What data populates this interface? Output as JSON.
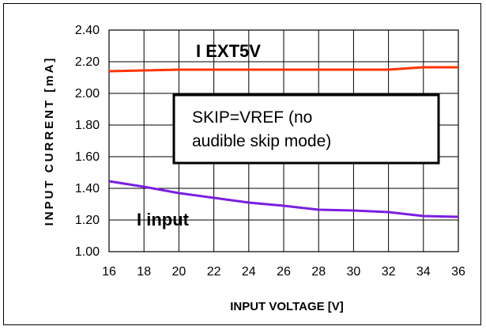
{
  "chart_data": {
    "type": "line",
    "xlabel": "INPUT VOLTAGE [V]",
    "ylabel": "INPUT CURRENT [mA]",
    "xlim": [
      16,
      36
    ],
    "ylim": [
      1.0,
      2.4
    ],
    "x_ticks": [
      16,
      18,
      20,
      22,
      24,
      26,
      28,
      30,
      32,
      34,
      36
    ],
    "y_ticks": [
      1.0,
      1.2,
      1.4,
      1.6,
      1.8,
      2.0,
      2.2,
      2.4
    ],
    "x_tick_labels": [
      "16",
      "18",
      "20",
      "22",
      "24",
      "26",
      "28",
      "30",
      "32",
      "34",
      "36"
    ],
    "y_tick_labels": [
      "1.00",
      "1.20",
      "1.40",
      "1.60",
      "1.80",
      "2.00",
      "2.20",
      "2.40"
    ],
    "grid": true,
    "series": [
      {
        "name": "I EXT5V",
        "color": "#ff3300",
        "x": [
          16,
          18,
          20,
          22,
          24,
          26,
          28,
          30,
          32,
          34,
          36
        ],
        "values": [
          2.14,
          2.145,
          2.15,
          2.15,
          2.15,
          2.15,
          2.15,
          2.15,
          2.15,
          2.165,
          2.165
        ]
      },
      {
        "name": "I input",
        "color": "#7a1fe0",
        "x": [
          16,
          18,
          20,
          22,
          24,
          26,
          28,
          30,
          32,
          34,
          36
        ],
        "values": [
          1.445,
          1.41,
          1.37,
          1.34,
          1.31,
          1.29,
          1.265,
          1.26,
          1.25,
          1.225,
          1.22
        ]
      }
    ],
    "annotation": {
      "line1": "SKIP=VREF (no",
      "line2": "audible skip mode)"
    }
  }
}
